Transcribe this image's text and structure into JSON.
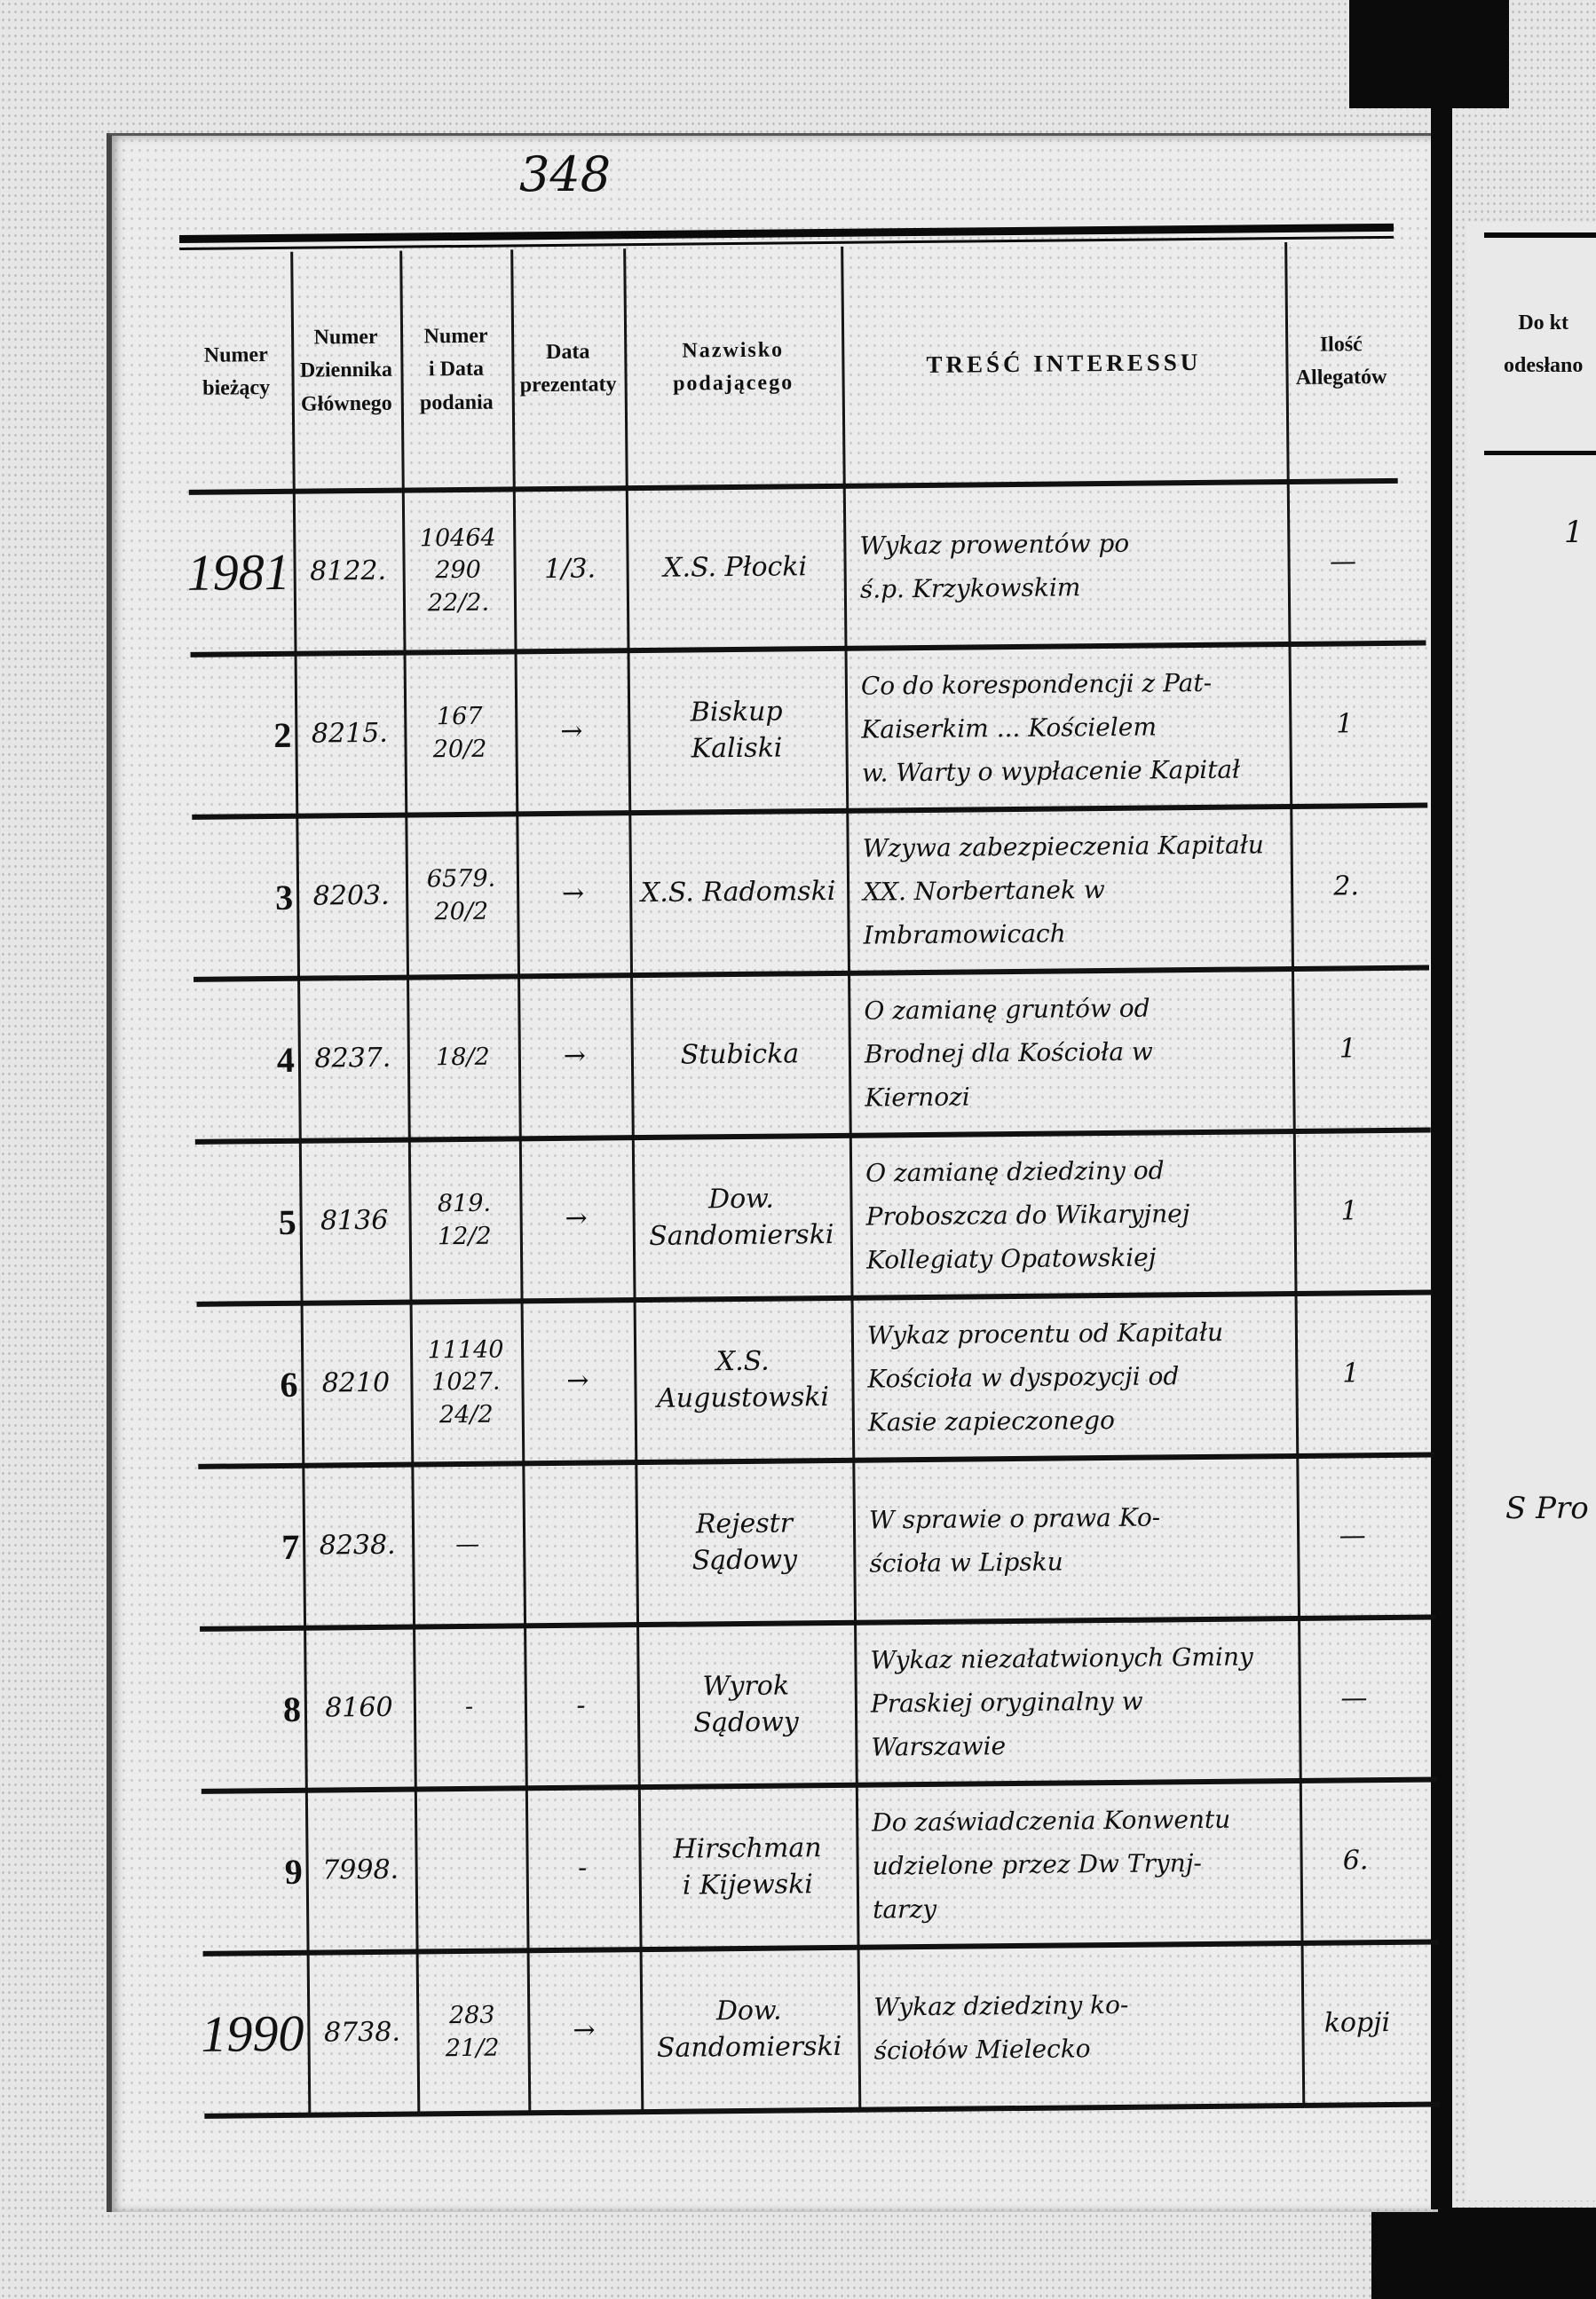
{
  "page_number": "348",
  "header": {
    "col_numer_biezacy": "Numer\nbieżący",
    "col_dziennik": "Numer\nDziennika\nGłównego",
    "col_numer_data": "Numer\ni Data\npodania",
    "col_data_prezentaty": "Data\nprezentaty",
    "col_nazwisko": "Nazwisko\npodającego",
    "col_tresc": "TREŚĆ  INTERESSU",
    "col_allegaty": "Ilość\nAllegatów"
  },
  "right_page": {
    "header": "Do kt\nodesłano",
    "entries": [
      "1",
      "S Pro"
    ]
  },
  "rows": [
    {
      "num": "1981",
      "dziennik": "8122.",
      "numer_data": "10464\n290\n22/2.",
      "prezentata": "1/3.",
      "nazwisko": "X.S. Płocki",
      "tresc": "Wykaz prowentów po\nś.p. Krzykowskim",
      "allegaty": "—"
    },
    {
      "num": "2",
      "dziennik": "8215.",
      "numer_data": "167\n20/2",
      "prezentata": "→",
      "nazwisko": "Biskup\nKaliski",
      "tresc": "Co do korespondencji z Pat-\nKaiserkim ... Kościelem\nw. Warty o wypłacenie Kapitał",
      "allegaty": "1"
    },
    {
      "num": "3",
      "dziennik": "8203.",
      "numer_data": "6579.\n20/2",
      "prezentata": "→",
      "nazwisko": "X.S. Radomski",
      "tresc": "Wzywa zabezpieczenia Kapitału\nXX. Norbertanek w\nImbramowicach",
      "allegaty": "2."
    },
    {
      "num": "4",
      "dziennik": "8237.",
      "numer_data": "18/2",
      "prezentata": "→",
      "nazwisko": "Stubicka",
      "tresc": "O zamianę gruntów od\nBrodnej dla Kościoła w\nKiernozi",
      "allegaty": "1"
    },
    {
      "num": "5",
      "dziennik": "8136",
      "numer_data": "819.\n12/2",
      "prezentata": "→",
      "nazwisko": "Dow.\nSandomierski",
      "tresc": "O zamianę dziedziny od\nProboszcza do Wikaryjnej\nKollegiaty Opatowskiej",
      "allegaty": "1"
    },
    {
      "num": "6",
      "dziennik": "8210",
      "numer_data": "11140\n1027.\n24/2",
      "prezentata": "→",
      "nazwisko": "X.S. Augustowski",
      "tresc": "Wykaz procentu od Kapitału\nKościoła w dyspozycji od\nKasie zapieczonego",
      "allegaty": "1"
    },
    {
      "num": "7",
      "dziennik": "8238.",
      "numer_data": "—",
      "prezentata": "",
      "nazwisko": "Rejestr\nSądowy",
      "tresc": "W sprawie o prawa Ko-\nścioła w Lipsku",
      "allegaty": "—"
    },
    {
      "num": "8",
      "dziennik": "8160",
      "numer_data": "-",
      "prezentata": "-",
      "nazwisko": "Wyrok\nSądowy",
      "tresc": "Wykaz niezałatwionych Gminy\nPraskiej oryginalny w\nWarszawie",
      "allegaty": "—"
    },
    {
      "num": "9",
      "dziennik": "7998.",
      "numer_data": "",
      "prezentata": "-",
      "nazwisko": "Hirschman\ni Kijewski",
      "tresc": "Do zaświadczenia Konwentu\nudzielone przez Dw Trynj-\ntarzy",
      "allegaty": "6."
    },
    {
      "num": "1990",
      "dziennik": "8738.",
      "numer_data": "283\n21/2",
      "prezentata": "→",
      "nazwisko": "Dow.\nSandomierski",
      "tresc": "Wykaz dziedziny ko-\nściołów Mielecko",
      "allegaty": "kopji"
    }
  ]
}
